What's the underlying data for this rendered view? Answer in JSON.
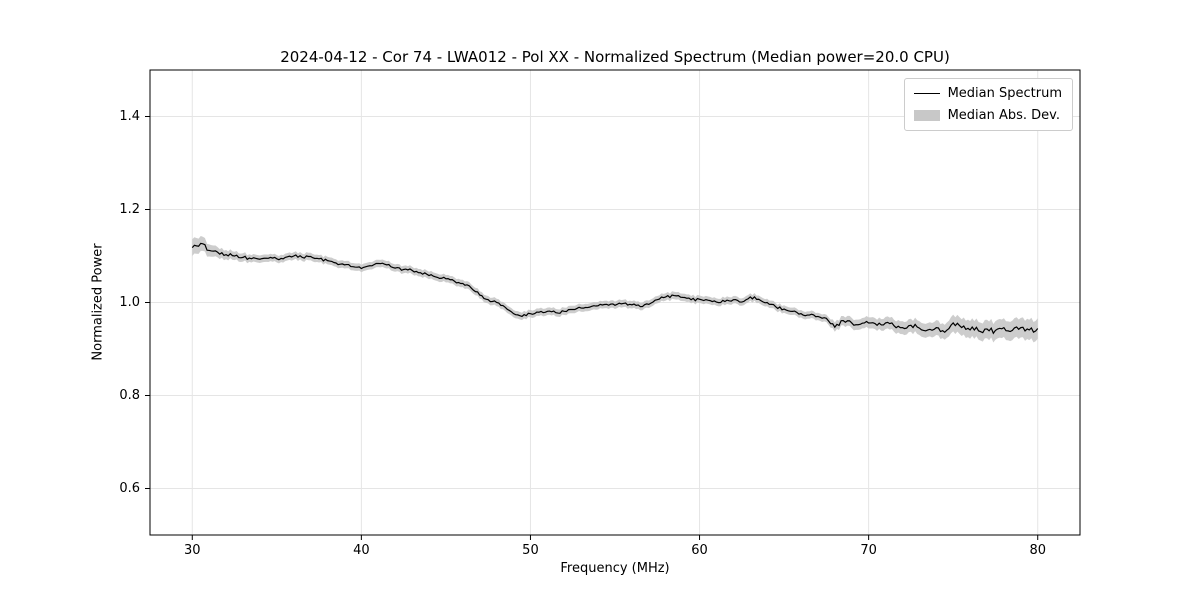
{
  "page": {
    "background": "#ffffff"
  },
  "chart_data": {
    "type": "line",
    "title": "2024-04-12 - Cor 74 - LWA012 - Pol XX - Normalized Spectrum (Median power=20.0 CPU)",
    "xlabel": "Frequency (MHz)",
    "ylabel": "Normalized Power",
    "xlim": [
      27.5,
      82.5
    ],
    "ylim": [
      0.5,
      1.5
    ],
    "xticks": [
      30,
      40,
      50,
      60,
      70,
      80
    ],
    "xtick_labels": [
      "30",
      "40",
      "50",
      "60",
      "70",
      "80"
    ],
    "yticks": [
      0.6,
      0.8,
      1.0,
      1.2,
      1.4
    ],
    "ytick_labels": [
      "0.6",
      "0.8",
      "1.0",
      "1.2",
      "1.4"
    ],
    "grid": true,
    "grid_color": "#e5e5e5",
    "line_color": "#000000",
    "band_color": "#c8c8c8",
    "noise_amplitude": 0.003,
    "legend": {
      "position": "upper right",
      "entries": [
        {
          "label": "Median Spectrum",
          "type": "line",
          "color": "#000000"
        },
        {
          "label": "Median Abs. Dev.",
          "type": "band",
          "color": "#c8c8c8"
        }
      ]
    },
    "series": [
      {
        "name": "Median Spectrum",
        "x_start": 30,
        "x_step": 0.5,
        "values": [
          1.118,
          1.127,
          1.112,
          1.108,
          1.103,
          1.1,
          1.097,
          1.094,
          1.093,
          1.095,
          1.094,
          1.097,
          1.1,
          1.097,
          1.099,
          1.094,
          1.09,
          1.085,
          1.081,
          1.077,
          1.073,
          1.079,
          1.084,
          1.081,
          1.074,
          1.071,
          1.069,
          1.064,
          1.058,
          1.054,
          1.051,
          1.046,
          1.041,
          1.031,
          1.016,
          1.006,
          1.0,
          0.99,
          0.976,
          0.97,
          0.976,
          0.979,
          0.981,
          0.978,
          0.981,
          0.985,
          0.988,
          0.99,
          0.993,
          0.996,
          0.994,
          0.998,
          0.995,
          0.991,
          0.996,
          1.006,
          1.012,
          1.015,
          1.011,
          1.006,
          1.007,
          1.005,
          1.001,
          1.002,
          1.006,
          1.001,
          1.012,
          1.007,
          1.0,
          0.991,
          0.986,
          0.981,
          0.976,
          0.973,
          0.97,
          0.966,
          0.947,
          0.961,
          0.956,
          0.953,
          0.956,
          0.951,
          0.956,
          0.95,
          0.946,
          0.951,
          0.945,
          0.941,
          0.946,
          0.936,
          0.956,
          0.946,
          0.941,
          0.939,
          0.943,
          0.94,
          0.946,
          0.94,
          0.946,
          0.941,
          0.944
        ]
      },
      {
        "name": "Median Abs. Dev.",
        "x_start": 30,
        "x_step": 0.5,
        "half_widths": [
          0.018,
          0.016,
          0.013,
          0.011,
          0.01,
          0.009,
          0.009,
          0.008,
          0.008,
          0.008,
          0.008,
          0.008,
          0.008,
          0.008,
          0.008,
          0.008,
          0.008,
          0.008,
          0.008,
          0.008,
          0.008,
          0.008,
          0.008,
          0.008,
          0.008,
          0.008,
          0.008,
          0.008,
          0.008,
          0.008,
          0.008,
          0.008,
          0.008,
          0.008,
          0.008,
          0.008,
          0.008,
          0.008,
          0.008,
          0.008,
          0.008,
          0.008,
          0.008,
          0.008,
          0.008,
          0.008,
          0.008,
          0.008,
          0.008,
          0.008,
          0.008,
          0.008,
          0.008,
          0.008,
          0.008,
          0.008,
          0.008,
          0.008,
          0.008,
          0.008,
          0.008,
          0.008,
          0.008,
          0.008,
          0.008,
          0.008,
          0.008,
          0.008,
          0.008,
          0.008,
          0.008,
          0.008,
          0.008,
          0.008,
          0.008,
          0.008,
          0.01,
          0.01,
          0.011,
          0.011,
          0.012,
          0.012,
          0.013,
          0.013,
          0.014,
          0.014,
          0.015,
          0.015,
          0.016,
          0.016,
          0.018,
          0.018,
          0.019,
          0.019,
          0.02,
          0.02,
          0.02,
          0.021,
          0.021,
          0.022,
          0.022
        ]
      }
    ]
  }
}
